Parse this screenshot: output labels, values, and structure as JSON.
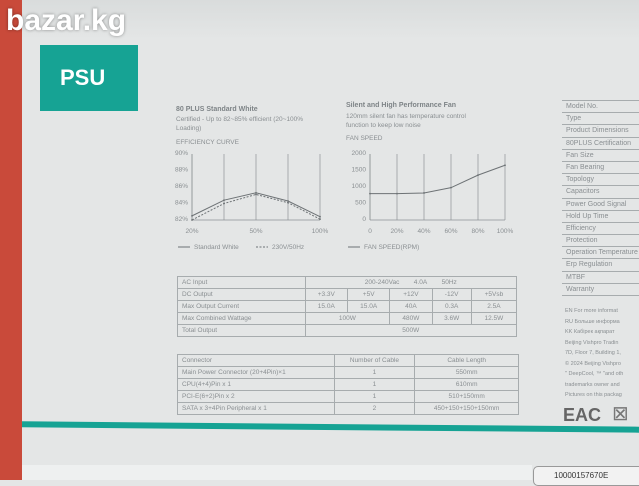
{
  "watermark": "bazar.kg",
  "section_title": "PSU",
  "efficiency": {
    "heading": "80 PLUS Standard White",
    "desc": "Certified - Up to 82~85% efficient (20~100% Loading)",
    "chart_title": "EFFICIENCY CURVE"
  },
  "fan": {
    "heading": "Silent and High Performance Fan",
    "desc1": "120mm silent fan has temperature control",
    "desc2": "function to keep low noise",
    "chart_title": "FAN SPEED"
  },
  "chart_data": [
    {
      "type": "line",
      "title": "EFFICIENCY CURVE",
      "x": [
        20,
        35,
        50,
        75,
        100
      ],
      "xticks": [
        "20%",
        "50%",
        "100%"
      ],
      "yticks": [
        "82%",
        "84%",
        "86%",
        "88%",
        "90%"
      ],
      "ylim": [
        82,
        90
      ],
      "grid": "vertical",
      "series": [
        {
          "name": "Standard White",
          "values": [
            82.5,
            84.4,
            85.3,
            84.3,
            82.4
          ],
          "dash": false
        },
        {
          "name": "230V/50Hz",
          "values": [
            82,
            84,
            85.1,
            84.1,
            82.1
          ],
          "dash": true
        }
      ],
      "legend": "bottom"
    },
    {
      "type": "line",
      "title": "FAN SPEED",
      "x": [
        0,
        20,
        40,
        60,
        80,
        100
      ],
      "xticks": [
        "0",
        "20%",
        "40%",
        "60%",
        "80%",
        "100%"
      ],
      "yticks": [
        "0",
        "500",
        "1000",
        "1500",
        "2000"
      ],
      "ylim": [
        0,
        2000
      ],
      "grid": "vertical",
      "series": [
        {
          "name": "FAN SPEED(RPM)",
          "values": [
            800,
            800,
            820,
            980,
            1360,
            1660
          ]
        }
      ],
      "legend": "bottom"
    }
  ],
  "output_table": {
    "ac_input": {
      "label": "AC Input",
      "voltage": "200-240Vac",
      "current": "4.0A",
      "freq": "50Hz"
    },
    "dc_output": [
      "DC Output",
      "+3.3V",
      "+5V",
      "+12V",
      "-12V",
      "+5Vsb"
    ],
    "max_current": [
      "Max Output Current",
      "15.0A",
      "15.0A",
      "40A",
      "0.3A",
      "2.5A"
    ],
    "max_wattage": [
      "Max Combined Wattage",
      "100W",
      "480W",
      "3.6W",
      "12.5W"
    ],
    "total": [
      "Total Output",
      "500W"
    ]
  },
  "connector_table": {
    "headers": [
      "Connector",
      "Number of Cable",
      "Cable Length"
    ],
    "rows": [
      [
        "Main Power Connector (20+4Pin)×1",
        "1",
        "550mm"
      ],
      [
        "CPU(4+4)Pin x 1",
        "1",
        "610mm"
      ],
      [
        "PCI-E(6+2)Pin x 2",
        "1",
        "510+150mm"
      ],
      [
        "SATA x 3+4Pin Peripheral x 1",
        "2",
        "450+150+150+150mm"
      ]
    ]
  },
  "spec_labels": [
    "Model No.",
    "Type",
    "Product Dimensions",
    "80PLUS Certification",
    "Fan Size",
    "Fan Bearing",
    "Topology",
    "Capacitors",
    "Power Good Signal",
    "Hold Up Time",
    "Efficiency",
    "Protection",
    "Operation Temperature",
    "Erp Regulation",
    "MTBF",
    "Warranty"
  ],
  "notes": [
    "EN  For more informat",
    "RU  Больше информа",
    "KK  Кабірек ақпарат",
    "Beijing Vishpro Tradin",
    "7D, Floor 7, Building 1,",
    "© 2024 Beijing Vishpro",
    "\" DeepCool, ™ \"and oth",
    "trademarks owner and",
    "Pictures on this packag"
  ],
  "marks": {
    "eac": "EAC"
  },
  "barcode": "10000157670E"
}
